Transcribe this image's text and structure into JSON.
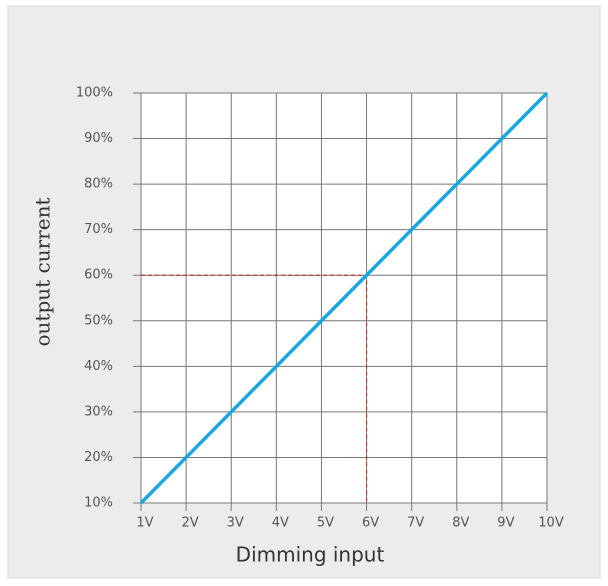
{
  "chart_data": {
    "type": "line",
    "x_label": "Dimming input",
    "y_label": "output current",
    "x": [
      1,
      2,
      3,
      4,
      5,
      6,
      7,
      8,
      9,
      10
    ],
    "series": [
      {
        "color": "#1aa7e0",
        "values": [
          10,
          20,
          30,
          40,
          50,
          60,
          70,
          80,
          90,
          100
        ]
      }
    ],
    "xlim": [
      1,
      10
    ],
    "ylim": [
      10,
      100
    ],
    "xticks": [
      {
        "value": 1,
        "label": "1V"
      },
      {
        "value": 2,
        "label": "2V"
      },
      {
        "value": 3,
        "label": "3V"
      },
      {
        "value": 4,
        "label": "4V"
      },
      {
        "value": 5,
        "label": "5V"
      },
      {
        "value": 6,
        "label": "6V"
      },
      {
        "value": 7,
        "label": "7V"
      },
      {
        "value": 8,
        "label": "8V"
      },
      {
        "value": 9,
        "label": "9V"
      },
      {
        "value": 10,
        "label": "10V"
      }
    ],
    "yticks": [
      {
        "value": 10,
        "label": "10%"
      },
      {
        "value": 20,
        "label": "20%"
      },
      {
        "value": 30,
        "label": "30%"
      },
      {
        "value": 40,
        "label": "40%"
      },
      {
        "value": 50,
        "label": "50%"
      },
      {
        "value": 60,
        "label": "60%"
      },
      {
        "value": 70,
        "label": "70%"
      },
      {
        "value": 80,
        "label": "80%"
      },
      {
        "value": 90,
        "label": "90%"
      },
      {
        "value": 100,
        "label": "100%"
      }
    ],
    "grid": true,
    "reference": {
      "x": 6,
      "y": 60,
      "color": "#c0392b"
    }
  }
}
